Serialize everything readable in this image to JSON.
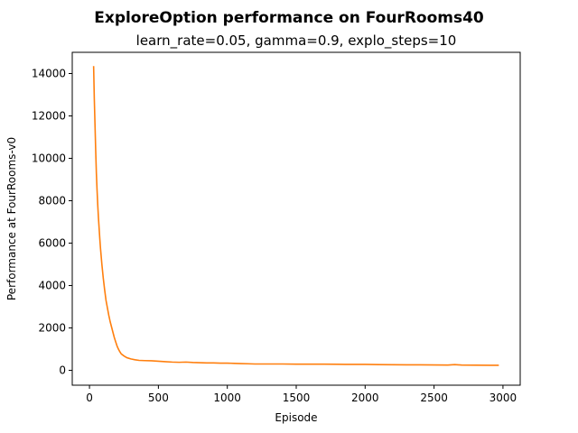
{
  "chart_data": {
    "type": "line",
    "title": "ExploreOption performance on FourRooms40",
    "subtitle": "learn_rate=0.05, gamma=0.9, explo_steps=10",
    "xlabel": "Episode",
    "ylabel": "Performance at FourRooms-v0",
    "xlim": [
      -125,
      3125
    ],
    "ylim": [
      -700,
      15000
    ],
    "x_ticks": [
      0,
      500,
      1000,
      1500,
      2000,
      2500,
      3000
    ],
    "y_ticks": [
      0,
      2000,
      4000,
      6000,
      8000,
      10000,
      12000,
      14000
    ],
    "grid": false,
    "legend": "none",
    "series": [
      {
        "color": "#ff7f0e",
        "x": [
          30,
          35,
          40,
          45,
          50,
          55,
          60,
          65,
          70,
          75,
          80,
          90,
          100,
          110,
          120,
          130,
          140,
          150,
          160,
          170,
          180,
          190,
          200,
          210,
          220,
          230,
          250,
          270,
          300,
          330,
          360,
          400,
          450,
          500,
          550,
          600,
          650,
          700,
          750,
          800,
          850,
          900,
          950,
          1000,
          1050,
          1100,
          1150,
          1200,
          1300,
          1400,
          1500,
          1600,
          1700,
          1800,
          1900,
          2000,
          2100,
          2200,
          2300,
          2400,
          2500,
          2600,
          2650,
          2700,
          2800,
          2900,
          2970
        ],
        "y": [
          14350,
          12800,
          11600,
          10400,
          9300,
          8500,
          7800,
          7200,
          6700,
          6200,
          5750,
          5000,
          4350,
          3800,
          3300,
          2950,
          2600,
          2300,
          2050,
          1800,
          1550,
          1350,
          1150,
          1000,
          880,
          780,
          680,
          600,
          540,
          500,
          470,
          460,
          450,
          430,
          410,
          390,
          380,
          390,
          370,
          360,
          350,
          350,
          340,
          340,
          330,
          320,
          310,
          300,
          300,
          300,
          290,
          290,
          290,
          285,
          280,
          280,
          270,
          265,
          260,
          260,
          255,
          250,
          270,
          250,
          245,
          240,
          240
        ]
      }
    ]
  }
}
